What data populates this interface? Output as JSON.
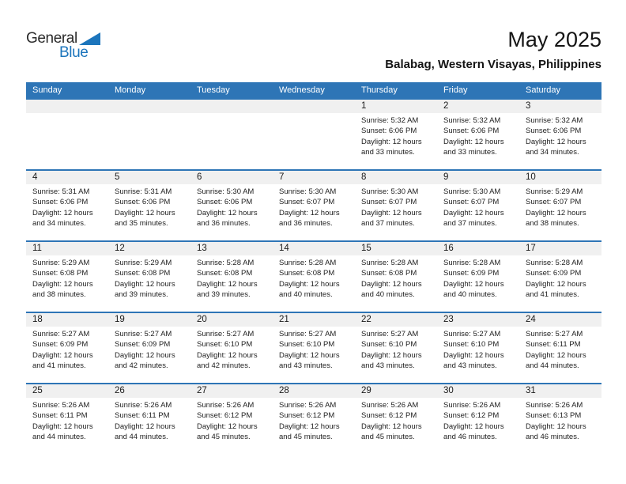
{
  "logo": {
    "line1": "General",
    "line2": "Blue",
    "triangle_color": "#1C75BC"
  },
  "page": {
    "title": "May 2025",
    "subtitle": "Balabag, Western Visayas, Philippines"
  },
  "colors": {
    "header_blue": "#2E75B6",
    "band_gray": "#F0F0F0",
    "logo_blue": "#1C75BC"
  },
  "calendar": {
    "day_headers": [
      "Sunday",
      "Monday",
      "Tuesday",
      "Wednesday",
      "Thursday",
      "Friday",
      "Saturday"
    ],
    "weeks": [
      [
        null,
        null,
        null,
        null,
        {
          "day": "1",
          "lines": [
            "Sunrise: 5:32 AM",
            "Sunset: 6:06 PM",
            "Daylight: 12 hours",
            "and 33 minutes."
          ]
        },
        {
          "day": "2",
          "lines": [
            "Sunrise: 5:32 AM",
            "Sunset: 6:06 PM",
            "Daylight: 12 hours",
            "and 33 minutes."
          ]
        },
        {
          "day": "3",
          "lines": [
            "Sunrise: 5:32 AM",
            "Sunset: 6:06 PM",
            "Daylight: 12 hours",
            "and 34 minutes."
          ]
        }
      ],
      [
        {
          "day": "4",
          "lines": [
            "Sunrise: 5:31 AM",
            "Sunset: 6:06 PM",
            "Daylight: 12 hours",
            "and 34 minutes."
          ]
        },
        {
          "day": "5",
          "lines": [
            "Sunrise: 5:31 AM",
            "Sunset: 6:06 PM",
            "Daylight: 12 hours",
            "and 35 minutes."
          ]
        },
        {
          "day": "6",
          "lines": [
            "Sunrise: 5:30 AM",
            "Sunset: 6:06 PM",
            "Daylight: 12 hours",
            "and 36 minutes."
          ]
        },
        {
          "day": "7",
          "lines": [
            "Sunrise: 5:30 AM",
            "Sunset: 6:07 PM",
            "Daylight: 12 hours",
            "and 36 minutes."
          ]
        },
        {
          "day": "8",
          "lines": [
            "Sunrise: 5:30 AM",
            "Sunset: 6:07 PM",
            "Daylight: 12 hours",
            "and 37 minutes."
          ]
        },
        {
          "day": "9",
          "lines": [
            "Sunrise: 5:30 AM",
            "Sunset: 6:07 PM",
            "Daylight: 12 hours",
            "and 37 minutes."
          ]
        },
        {
          "day": "10",
          "lines": [
            "Sunrise: 5:29 AM",
            "Sunset: 6:07 PM",
            "Daylight: 12 hours",
            "and 38 minutes."
          ]
        }
      ],
      [
        {
          "day": "11",
          "lines": [
            "Sunrise: 5:29 AM",
            "Sunset: 6:08 PM",
            "Daylight: 12 hours",
            "and 38 minutes."
          ]
        },
        {
          "day": "12",
          "lines": [
            "Sunrise: 5:29 AM",
            "Sunset: 6:08 PM",
            "Daylight: 12 hours",
            "and 39 minutes."
          ]
        },
        {
          "day": "13",
          "lines": [
            "Sunrise: 5:28 AM",
            "Sunset: 6:08 PM",
            "Daylight: 12 hours",
            "and 39 minutes."
          ]
        },
        {
          "day": "14",
          "lines": [
            "Sunrise: 5:28 AM",
            "Sunset: 6:08 PM",
            "Daylight: 12 hours",
            "and 40 minutes."
          ]
        },
        {
          "day": "15",
          "lines": [
            "Sunrise: 5:28 AM",
            "Sunset: 6:08 PM",
            "Daylight: 12 hours",
            "and 40 minutes."
          ]
        },
        {
          "day": "16",
          "lines": [
            "Sunrise: 5:28 AM",
            "Sunset: 6:09 PM",
            "Daylight: 12 hours",
            "and 40 minutes."
          ]
        },
        {
          "day": "17",
          "lines": [
            "Sunrise: 5:28 AM",
            "Sunset: 6:09 PM",
            "Daylight: 12 hours",
            "and 41 minutes."
          ]
        }
      ],
      [
        {
          "day": "18",
          "lines": [
            "Sunrise: 5:27 AM",
            "Sunset: 6:09 PM",
            "Daylight: 12 hours",
            "and 41 minutes."
          ]
        },
        {
          "day": "19",
          "lines": [
            "Sunrise: 5:27 AM",
            "Sunset: 6:09 PM",
            "Daylight: 12 hours",
            "and 42 minutes."
          ]
        },
        {
          "day": "20",
          "lines": [
            "Sunrise: 5:27 AM",
            "Sunset: 6:10 PM",
            "Daylight: 12 hours",
            "and 42 minutes."
          ]
        },
        {
          "day": "21",
          "lines": [
            "Sunrise: 5:27 AM",
            "Sunset: 6:10 PM",
            "Daylight: 12 hours",
            "and 43 minutes."
          ]
        },
        {
          "day": "22",
          "lines": [
            "Sunrise: 5:27 AM",
            "Sunset: 6:10 PM",
            "Daylight: 12 hours",
            "and 43 minutes."
          ]
        },
        {
          "day": "23",
          "lines": [
            "Sunrise: 5:27 AM",
            "Sunset: 6:10 PM",
            "Daylight: 12 hours",
            "and 43 minutes."
          ]
        },
        {
          "day": "24",
          "lines": [
            "Sunrise: 5:27 AM",
            "Sunset: 6:11 PM",
            "Daylight: 12 hours",
            "and 44 minutes."
          ]
        }
      ],
      [
        {
          "day": "25",
          "lines": [
            "Sunrise: 5:26 AM",
            "Sunset: 6:11 PM",
            "Daylight: 12 hours",
            "and 44 minutes."
          ]
        },
        {
          "day": "26",
          "lines": [
            "Sunrise: 5:26 AM",
            "Sunset: 6:11 PM",
            "Daylight: 12 hours",
            "and 44 minutes."
          ]
        },
        {
          "day": "27",
          "lines": [
            "Sunrise: 5:26 AM",
            "Sunset: 6:12 PM",
            "Daylight: 12 hours",
            "and 45 minutes."
          ]
        },
        {
          "day": "28",
          "lines": [
            "Sunrise: 5:26 AM",
            "Sunset: 6:12 PM",
            "Daylight: 12 hours",
            "and 45 minutes."
          ]
        },
        {
          "day": "29",
          "lines": [
            "Sunrise: 5:26 AM",
            "Sunset: 6:12 PM",
            "Daylight: 12 hours",
            "and 45 minutes."
          ]
        },
        {
          "day": "30",
          "lines": [
            "Sunrise: 5:26 AM",
            "Sunset: 6:12 PM",
            "Daylight: 12 hours",
            "and 46 minutes."
          ]
        },
        {
          "day": "31",
          "lines": [
            "Sunrise: 5:26 AM",
            "Sunset: 6:13 PM",
            "Daylight: 12 hours",
            "and 46 minutes."
          ]
        }
      ]
    ]
  }
}
